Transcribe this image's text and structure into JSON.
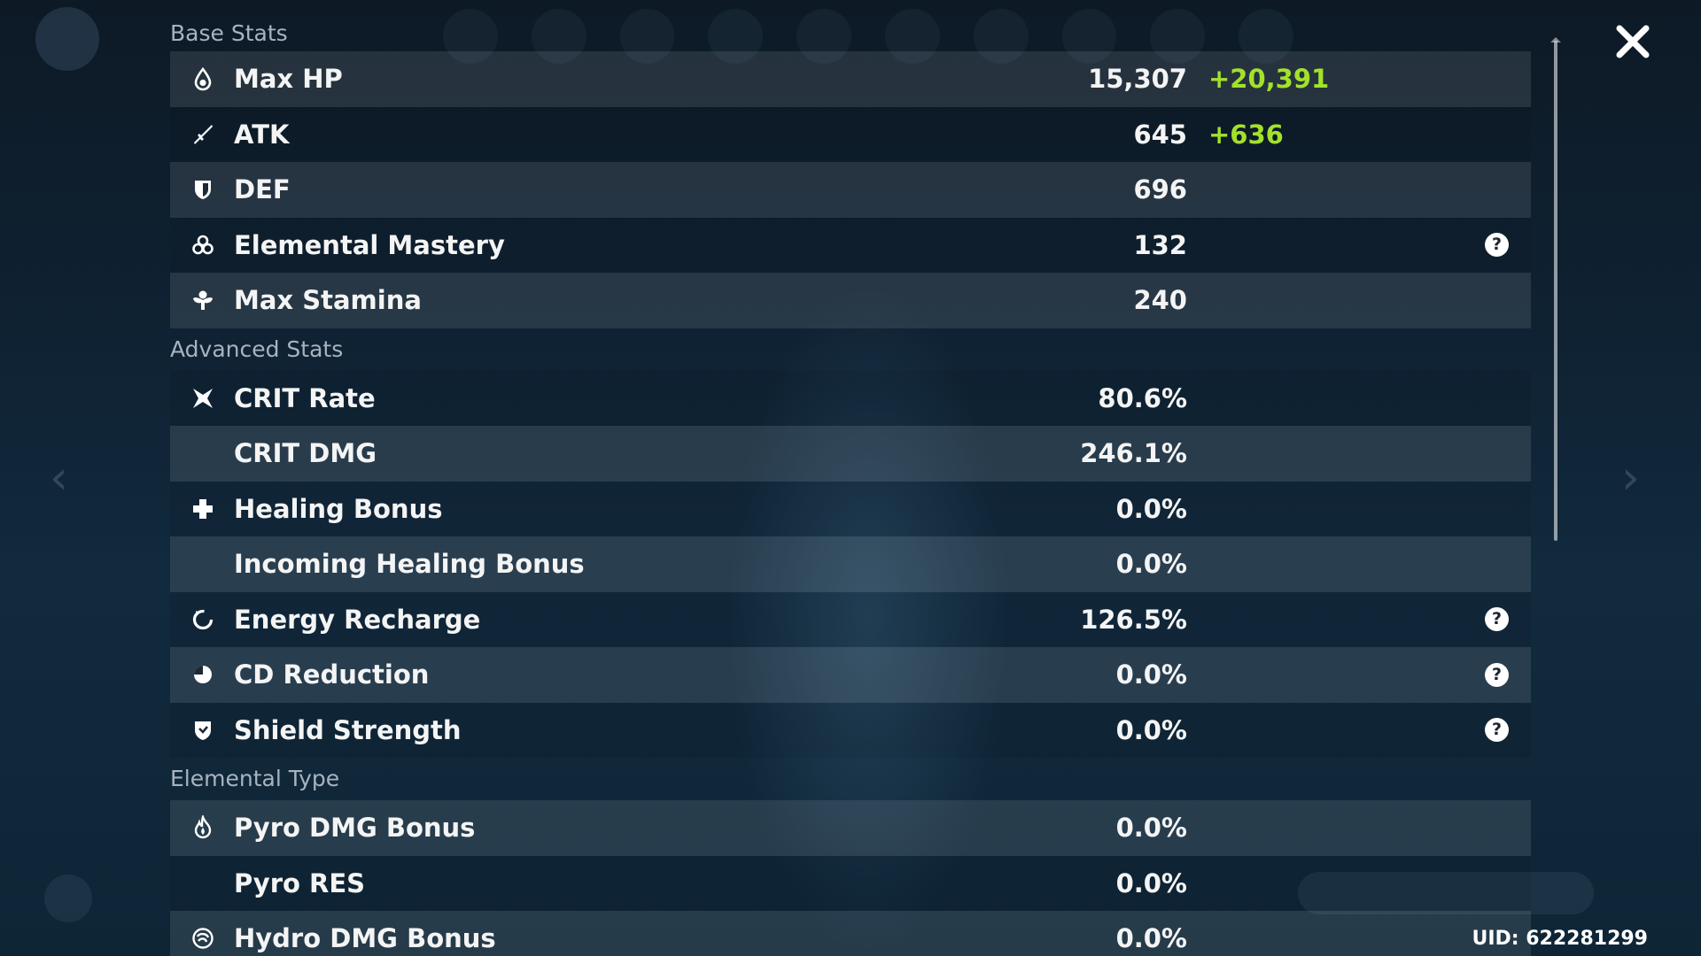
{
  "sections": {
    "base": "Base Stats",
    "advanced": "Advanced Stats",
    "elemental": "Elemental Type"
  },
  "base_stats": [
    {
      "label": "Max HP",
      "value": "15,307",
      "bonus": "+20,391",
      "icon": "hp-drop-icon"
    },
    {
      "label": "ATK",
      "value": "645",
      "bonus": "+636",
      "icon": "sword-icon"
    },
    {
      "label": "DEF",
      "value": "696",
      "icon": "shield-icon"
    },
    {
      "label": "Elemental Mastery",
      "value": "132",
      "icon": "elemental-mastery-icon",
      "help": "?"
    },
    {
      "label": "Max Stamina",
      "value": "240",
      "icon": "stamina-icon"
    }
  ],
  "advanced_stats": [
    {
      "label": "CRIT Rate",
      "value": "80.6%",
      "icon": "crit-icon"
    },
    {
      "label": "CRIT DMG",
      "value": "246.1%"
    },
    {
      "label": "Healing Bonus",
      "value": "0.0%",
      "icon": "cross-icon"
    },
    {
      "label": "Incoming Healing Bonus",
      "value": "0.0%"
    },
    {
      "label": "Energy Recharge",
      "value": "126.5%",
      "icon": "energy-recharge-icon",
      "help": "?"
    },
    {
      "label": "CD Reduction",
      "value": "0.0%",
      "icon": "cd-reduction-icon",
      "help": "?"
    },
    {
      "label": "Shield Strength",
      "value": "0.0%",
      "icon": "shield-strength-icon",
      "help": "?"
    }
  ],
  "elemental_stats": [
    {
      "label": "Pyro DMG Bonus",
      "value": "0.0%",
      "icon": "pyro-icon"
    },
    {
      "label": "Pyro RES",
      "value": "0.0%"
    },
    {
      "label": "Hydro DMG Bonus",
      "value": "0.0%",
      "icon": "hydro-icon"
    }
  ],
  "uid": "UID: 622281299",
  "colors": {
    "bonus": "#a3e12b",
    "section_header": "#a7b3bf",
    "text": "#f4f4f4"
  }
}
